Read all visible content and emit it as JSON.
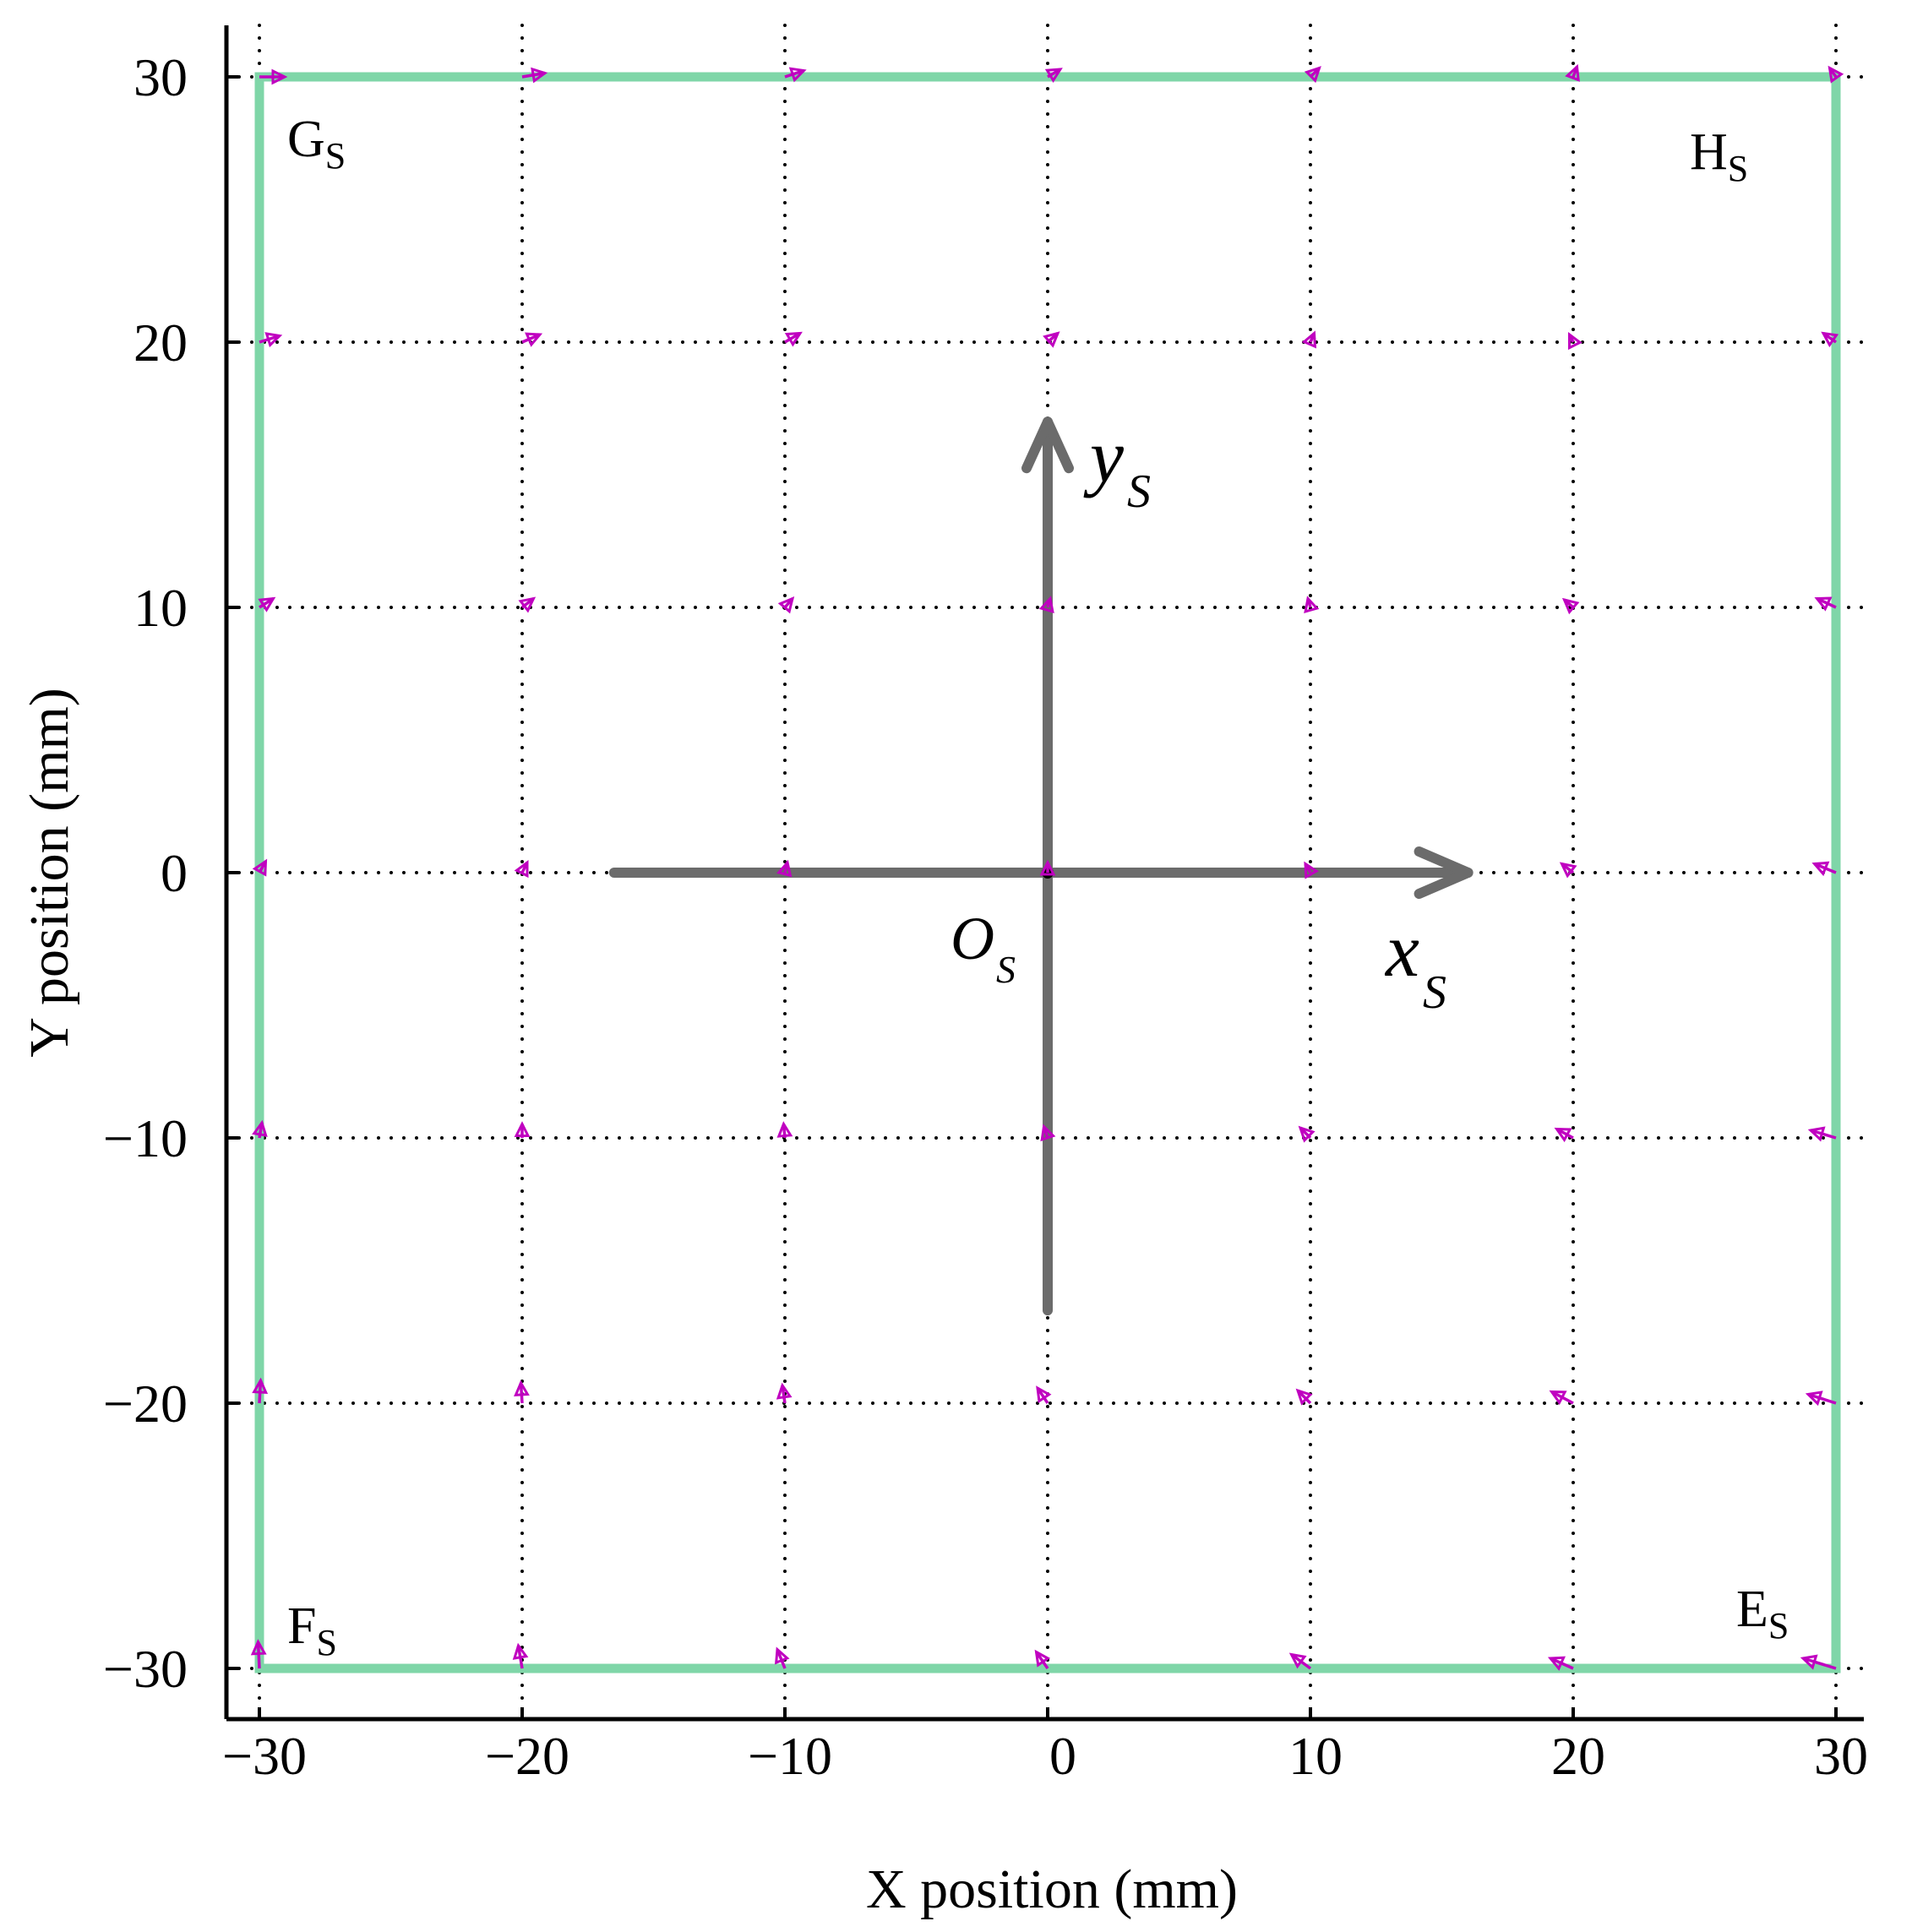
{
  "chart_data": {
    "type": "quiver",
    "title": "",
    "xlabel": "X position (mm)",
    "ylabel": "Y position (mm)",
    "xlim": [
      -31,
      31
    ],
    "ylim": [
      -32,
      32
    ],
    "xticks": [
      -30,
      -20,
      -10,
      0,
      10,
      20,
      30
    ],
    "yticks": [
      -30,
      -20,
      -10,
      0,
      10,
      20,
      30
    ],
    "xtick_labels": [
      "−30",
      "−20",
      "−10",
      "0",
      "10",
      "20",
      "30"
    ],
    "ytick_labels": [
      "−30",
      "−20",
      "−10",
      "0",
      "10",
      "20",
      "30"
    ],
    "grid": "dotted",
    "square": {
      "x": [
        -30,
        30
      ],
      "y": [
        -30,
        30
      ],
      "color": "#7fd6a8",
      "corner_labels": [
        {
          "main": "G",
          "sub": "S",
          "corner": "top-left"
        },
        {
          "main": "H",
          "sub": "S",
          "corner": "top-right"
        },
        {
          "main": "F",
          "sub": "S",
          "corner": "bottom-left"
        },
        {
          "main": "E",
          "sub": "S",
          "corner": "bottom-right"
        }
      ]
    },
    "frame": {
      "origin": [
        0,
        0
      ],
      "x_axis": {
        "from": -16.5,
        "to": 16,
        "label_main": "x",
        "label_sub": "S"
      },
      "y_axis": {
        "from": -16.5,
        "to": 17,
        "label_main": "y",
        "label_sub": "S"
      },
      "origin_label_main": "O",
      "origin_label_sub": "S",
      "color": "#6b6b6b"
    },
    "vectors": {
      "color": "#c000c0",
      "grid_x": [
        -30,
        -20,
        -10,
        0,
        10,
        20,
        30
      ],
      "grid_y": [
        30,
        20,
        10,
        0,
        -10,
        -20,
        -30
      ],
      "u": [
        [
          2.0,
          1.8,
          1.5,
          1.0,
          0.7,
          0.3,
          -0.5
        ],
        [
          1.6,
          1.4,
          1.2,
          0.8,
          0.3,
          -0.3,
          -1.0
        ],
        [
          1.1,
          0.9,
          0.6,
          0.2,
          -0.2,
          -0.7,
          -1.5
        ],
        [
          0.5,
          0.4,
          0.2,
          0.0,
          -0.4,
          -0.9,
          -1.7
        ],
        [
          0.2,
          0.0,
          -0.1,
          -0.3,
          -0.8,
          -1.3,
          -2.0
        ],
        [
          0.1,
          -0.1,
          -0.2,
          -0.8,
          -1.0,
          -1.7,
          -2.2
        ],
        [
          -0.1,
          -0.3,
          -0.6,
          -0.9,
          -1.5,
          -1.8,
          -2.6
        ]
      ],
      "v": [
        [
          0.0,
          0.3,
          0.5,
          0.6,
          0.7,
          0.8,
          0.7
        ],
        [
          0.5,
          0.6,
          0.7,
          0.7,
          0.7,
          0.6,
          0.7
        ],
        [
          0.7,
          0.7,
          0.7,
          0.7,
          0.7,
          0.6,
          0.7
        ],
        [
          0.9,
          0.8,
          0.8,
          0.8,
          0.7,
          0.7,
          0.7
        ],
        [
          1.2,
          1.1,
          1.1,
          0.9,
          0.8,
          0.7,
          0.6
        ],
        [
          1.8,
          1.6,
          1.4,
          1.2,
          1.0,
          0.9,
          0.7
        ],
        [
          2.1,
          1.8,
          1.5,
          1.3,
          1.1,
          0.8,
          0.8
        ]
      ]
    }
  }
}
